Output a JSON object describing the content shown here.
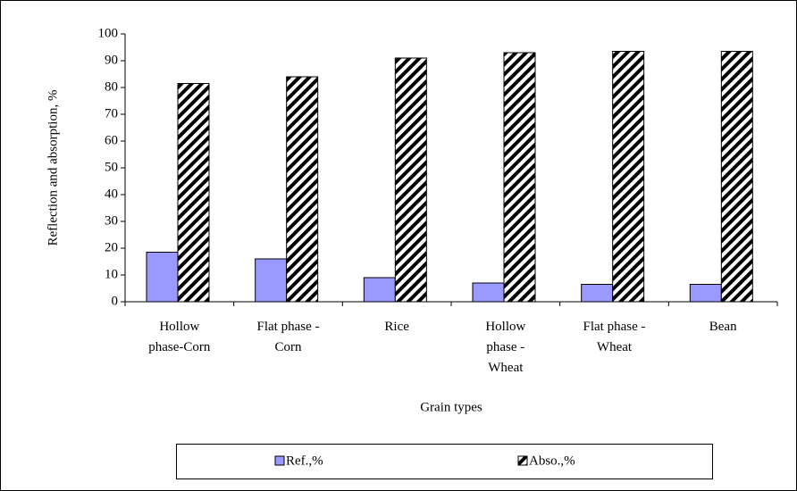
{
  "chart_data": {
    "type": "bar",
    "categories": [
      "Hollow phase-Corn",
      "Flat phase - Corn",
      "Rice",
      "Hollow phase - Wheat",
      "Flat phase - Wheat",
      "Bean"
    ],
    "series": [
      {
        "name": "Ref.,%",
        "color": "#9999ff",
        "values": [
          18.5,
          16,
          9,
          7,
          6.5,
          6.5
        ]
      },
      {
        "name": "Abso.,%",
        "color": "#000000",
        "pattern": "hatch",
        "values": [
          81.5,
          84,
          91,
          93,
          93.5,
          93.5
        ]
      }
    ],
    "x_label": "Grain types",
    "y_label": "Reflection and absorption, %",
    "ylim": [
      0,
      100
    ],
    "yticks": [
      0,
      10,
      20,
      30,
      40,
      50,
      60,
      70,
      80,
      90,
      100
    ],
    "grid": false,
    "legend": "bottom"
  }
}
